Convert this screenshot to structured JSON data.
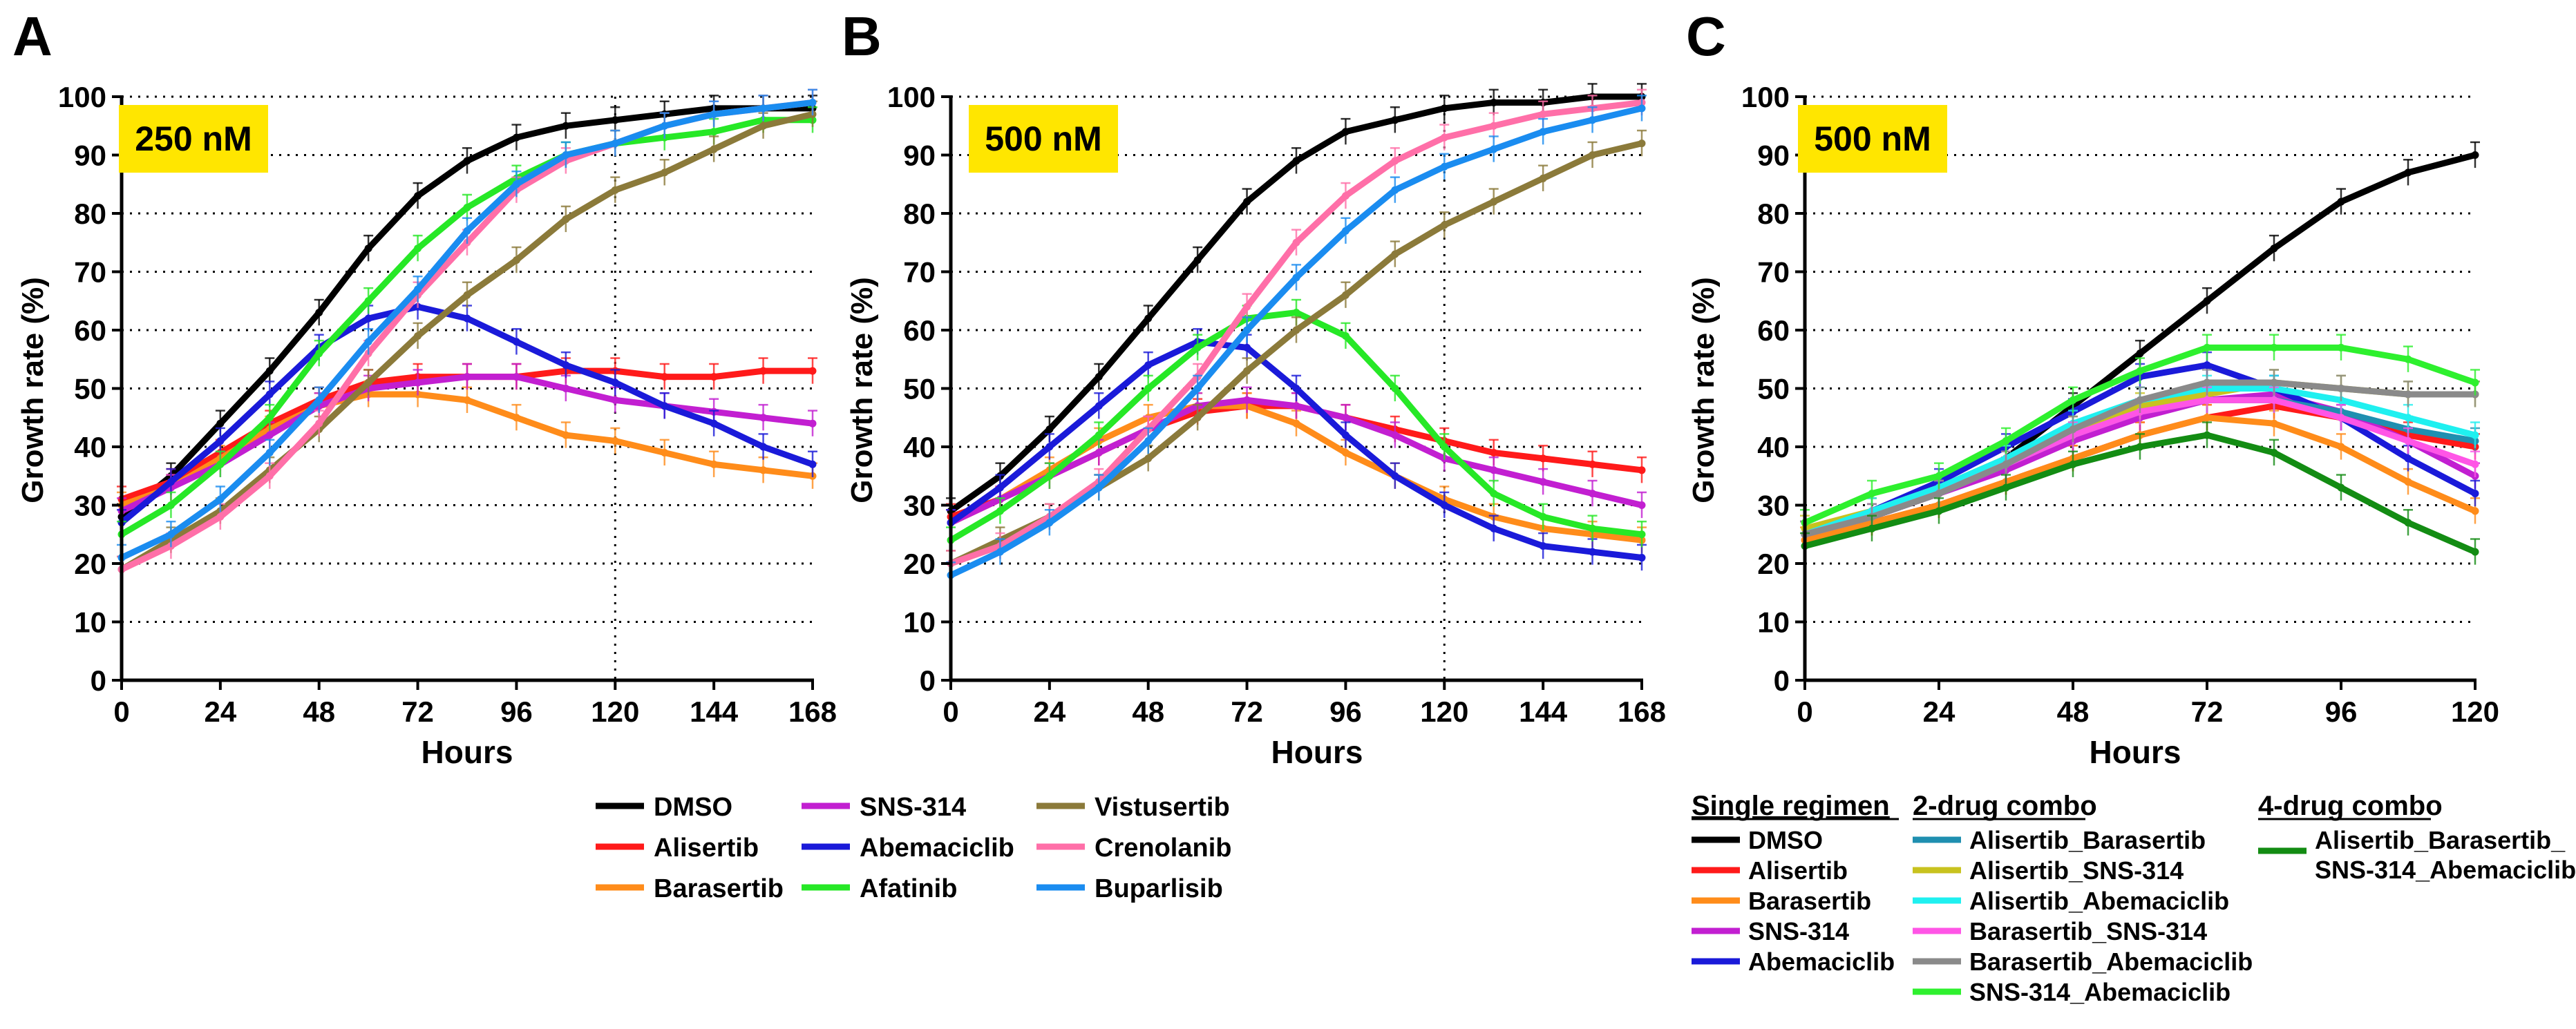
{
  "colors": {
    "DMSO": "#000000",
    "Alisertib": "#ff1a1a",
    "Barasertib": "#ff8c1a",
    "SNS-314": "#c21fd1",
    "Abemaciclib": "#1a1ad9",
    "Afatinib": "#26e826",
    "Vistusertib": "#8b7a3a",
    "Crenolanib": "#ff6fa8",
    "Buparlisib": "#1a8cf0",
    "Alisertib_Barasertib": "#1f8fb0",
    "Alisertib_SNS-314": "#c8c21f",
    "Alisertib_Abemaciclib": "#1ff0f0",
    "Barasertib_SNS-314": "#ff55e6",
    "Barasertib_Abemaciclib": "#8a8a8a",
    "SNS-314_Abemaciclib": "#2ef02e",
    "Alisertib_Barasertib_SNS-314_Abemaciclib": "#138c13",
    "badge": "#ffe600"
  },
  "chart_data": [
    {
      "type": "line",
      "panel": "A",
      "badge": "250 nM",
      "xlabel": "Hours",
      "ylabel": "Growth rate (%)",
      "xlim": [
        0,
        168
      ],
      "ylim": [
        0,
        100
      ],
      "xticks": [
        0,
        24,
        48,
        72,
        96,
        120,
        144,
        168
      ],
      "yticks": [
        0,
        10,
        20,
        30,
        40,
        50,
        60,
        70,
        80,
        90,
        100
      ],
      "vline_x": 120,
      "x": [
        0,
        12,
        24,
        36,
        48,
        60,
        72,
        84,
        96,
        108,
        120,
        132,
        144,
        156,
        168
      ],
      "series": [
        {
          "name": "DMSO",
          "values": [
            28,
            35,
            44,
            53,
            63,
            74,
            83,
            89,
            93,
            95,
            96,
            97,
            98,
            98,
            98
          ]
        },
        {
          "name": "Alisertib",
          "values": [
            31,
            34,
            39,
            44,
            48,
            51,
            52,
            52,
            52,
            53,
            53,
            52,
            52,
            53,
            53
          ]
        },
        {
          "name": "Barasertib",
          "values": [
            30,
            33,
            38,
            43,
            47,
            49,
            49,
            48,
            45,
            42,
            41,
            39,
            37,
            36,
            35
          ]
        },
        {
          "name": "SNS-314",
          "values": [
            29,
            33,
            37,
            42,
            47,
            50,
            51,
            52,
            52,
            50,
            48,
            47,
            46,
            45,
            44
          ]
        },
        {
          "name": "Abemaciclib",
          "values": [
            27,
            34,
            41,
            49,
            57,
            62,
            64,
            62,
            58,
            54,
            51,
            47,
            44,
            40,
            37
          ]
        },
        {
          "name": "Afatinib",
          "values": [
            25,
            30,
            37,
            45,
            56,
            65,
            74,
            81,
            86,
            90,
            92,
            93,
            94,
            96,
            96
          ]
        },
        {
          "name": "Vistusertib",
          "values": [
            19,
            24,
            29,
            36,
            43,
            51,
            59,
            66,
            72,
            79,
            84,
            87,
            91,
            95,
            97
          ]
        },
        {
          "name": "Crenolanib",
          "values": [
            19,
            23,
            28,
            35,
            44,
            56,
            66,
            75,
            84,
            89,
            92,
            95,
            97,
            98,
            99
          ]
        },
        {
          "name": "Buparlisib",
          "values": [
            21,
            25,
            31,
            39,
            48,
            58,
            67,
            77,
            85,
            90,
            92,
            95,
            97,
            98,
            99
          ]
        }
      ]
    },
    {
      "type": "line",
      "panel": "B",
      "badge": "500 nM",
      "xlabel": "Hours",
      "ylabel": "Growth rate (%)",
      "xlim": [
        0,
        168
      ],
      "ylim": [
        0,
        100
      ],
      "xticks": [
        0,
        24,
        48,
        72,
        96,
        120,
        144,
        168
      ],
      "yticks": [
        0,
        10,
        20,
        30,
        40,
        50,
        60,
        70,
        80,
        90,
        100
      ],
      "vline_x": 120,
      "x": [
        0,
        12,
        24,
        36,
        48,
        60,
        72,
        84,
        96,
        108,
        120,
        132,
        144,
        156,
        168
      ],
      "series": [
        {
          "name": "DMSO",
          "values": [
            29,
            35,
            43,
            52,
            62,
            72,
            82,
            89,
            94,
            96,
            98,
            99,
            99,
            100,
            100
          ]
        },
        {
          "name": "Alisertib",
          "values": [
            28,
            31,
            35,
            39,
            43,
            46,
            47,
            47,
            45,
            43,
            41,
            39,
            38,
            37,
            36
          ]
        },
        {
          "name": "Barasertib",
          "values": [
            27,
            31,
            36,
            41,
            45,
            47,
            47,
            44,
            39,
            35,
            31,
            28,
            26,
            25,
            24
          ]
        },
        {
          "name": "SNS-314",
          "values": [
            27,
            31,
            35,
            39,
            43,
            47,
            48,
            47,
            45,
            42,
            38,
            36,
            34,
            32,
            30
          ]
        },
        {
          "name": "Abemaciclib",
          "values": [
            27,
            33,
            40,
            47,
            54,
            58,
            57,
            50,
            42,
            35,
            30,
            26,
            23,
            22,
            21
          ]
        },
        {
          "name": "Afatinib",
          "values": [
            24,
            29,
            35,
            42,
            50,
            57,
            62,
            63,
            59,
            50,
            40,
            32,
            28,
            26,
            25
          ]
        },
        {
          "name": "Vistusertib",
          "values": [
            20,
            24,
            28,
            33,
            38,
            45,
            53,
            60,
            66,
            73,
            78,
            82,
            86,
            90,
            92
          ]
        },
        {
          "name": "Crenolanib",
          "values": [
            20,
            23,
            28,
            34,
            43,
            52,
            64,
            75,
            83,
            89,
            93,
            95,
            97,
            98,
            99
          ]
        },
        {
          "name": "Buparlisib",
          "values": [
            18,
            22,
            27,
            33,
            41,
            50,
            60,
            69,
            77,
            84,
            88,
            91,
            94,
            96,
            98
          ]
        }
      ]
    },
    {
      "type": "line",
      "panel": "C",
      "badge": "500 nM",
      "xlabel": "Hours",
      "ylabel": "Growth rate (%)",
      "xlim": [
        0,
        120
      ],
      "ylim": [
        0,
        100
      ],
      "xticks": [
        0,
        24,
        48,
        72,
        96,
        120
      ],
      "yticks": [
        0,
        10,
        20,
        30,
        40,
        50,
        60,
        70,
        80,
        90,
        100
      ],
      "x": [
        0,
        12,
        24,
        36,
        48,
        60,
        72,
        84,
        96,
        108,
        120
      ],
      "series": [
        {
          "name": "DMSO",
          "values": [
            25,
            28,
            32,
            38,
            47,
            56,
            65,
            74,
            82,
            87,
            90
          ]
        },
        {
          "name": "Alisertib",
          "values": [
            25,
            27,
            30,
            34,
            38,
            42,
            45,
            47,
            45,
            42,
            40
          ]
        },
        {
          "name": "Barasertib",
          "values": [
            24,
            27,
            30,
            34,
            38,
            42,
            45,
            44,
            40,
            34,
            29
          ]
        },
        {
          "name": "SNS-314",
          "values": [
            25,
            28,
            32,
            36,
            41,
            45,
            48,
            49,
            46,
            41,
            35
          ]
        },
        {
          "name": "Abemaciclib",
          "values": [
            25,
            29,
            34,
            40,
            46,
            52,
            54,
            50,
            45,
            38,
            32
          ]
        },
        {
          "name": "Alisertib_Barasertib",
          "values": [
            25,
            28,
            32,
            37,
            42,
            46,
            48,
            48,
            46,
            43,
            41
          ]
        },
        {
          "name": "Alisertib_SNS-314",
          "values": [
            26,
            29,
            33,
            38,
            43,
            47,
            49,
            51,
            50,
            49,
            49
          ]
        },
        {
          "name": "Alisertib_Abemaciclib",
          "values": [
            25,
            29,
            33,
            38,
            44,
            48,
            50,
            50,
            48,
            45,
            42
          ]
        },
        {
          "name": "Barasertib_SNS-314",
          "values": [
            25,
            28,
            32,
            37,
            42,
            46,
            48,
            48,
            45,
            41,
            37
          ]
        },
        {
          "name": "Barasertib_Abemaciclib",
          "values": [
            25,
            28,
            32,
            37,
            43,
            48,
            51,
            51,
            50,
            49,
            49
          ]
        },
        {
          "name": "SNS-314_Abemaciclib",
          "values": [
            27,
            32,
            35,
            41,
            48,
            53,
            57,
            57,
            57,
            55,
            51
          ]
        },
        {
          "name": "Alisertib_Barasertib_SNS-314_Abemaciclib",
          "values": [
            23,
            26,
            29,
            33,
            37,
            40,
            42,
            39,
            33,
            27,
            22
          ]
        }
      ]
    }
  ],
  "legend_ab": {
    "columns": [
      [
        "DMSO",
        "Alisertib",
        "Barasertib"
      ],
      [
        "SNS-314",
        "Abemaciclib",
        "Afatinib"
      ],
      [
        "Vistusertib",
        "Crenolanib",
        "Buparlisib"
      ]
    ]
  },
  "legend_c": {
    "single_title": "Single regimen",
    "single": [
      "DMSO",
      "Alisertib",
      "Barasertib",
      "SNS-314",
      "Abemaciclib"
    ],
    "two_title": "2-drug combo",
    "two": [
      "Alisertib_Barasertib",
      "Alisertib_SNS-314",
      "Alisertib_Abemaciclib",
      "Barasertib_SNS-314",
      "Barasertib_Abemaciclib",
      "SNS-314_Abemaciclib"
    ],
    "four_title": "4-drug combo",
    "four_key": "Alisertib_Barasertib_SNS-314_Abemaciclib",
    "four_line1": "Alisertib_Barasertib_",
    "four_line2": "SNS-314_Abemaciclib"
  }
}
